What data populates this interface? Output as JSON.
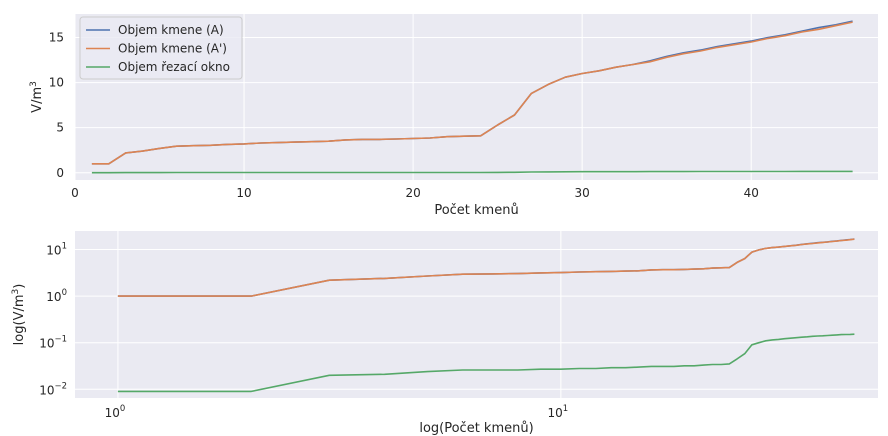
{
  "chart_data": [
    {
      "type": "line",
      "xlabel": "Počet kmenů",
      "ylabel": "V/m",
      "ylabel_sup": "3",
      "xlim": [
        0,
        47.5
      ],
      "ylim": [
        -0.8,
        17.6
      ],
      "xticks": [
        0,
        10,
        20,
        30,
        40
      ],
      "yticks": [
        0,
        5,
        10,
        15
      ],
      "grid": true,
      "legend_position": "top-left",
      "x": [
        1,
        2,
        3,
        4,
        5,
        6,
        7,
        8,
        9,
        10,
        11,
        12,
        13,
        14,
        15,
        16,
        17,
        18,
        19,
        20,
        21,
        22,
        23,
        24,
        25,
        26,
        27,
        28,
        29,
        30,
        31,
        32,
        33,
        34,
        35,
        36,
        37,
        38,
        39,
        40,
        41,
        42,
        43,
        44,
        45,
        46
      ],
      "series": [
        {
          "name": "Objem kmene (A)",
          "color": "#4c72b0",
          "values": [
            1.0,
            1.0,
            2.2,
            2.4,
            2.7,
            2.95,
            3.0,
            3.05,
            3.15,
            3.2,
            3.3,
            3.35,
            3.4,
            3.45,
            3.5,
            3.65,
            3.7,
            3.7,
            3.75,
            3.8,
            3.85,
            4.0,
            4.05,
            4.1,
            5.3,
            6.4,
            8.8,
            9.8,
            10.6,
            11.0,
            11.3,
            11.7,
            12.0,
            12.4,
            12.9,
            13.3,
            13.6,
            14.0,
            14.3,
            14.6,
            15.0,
            15.3,
            15.7,
            16.1,
            16.4,
            16.8
          ]
        },
        {
          "name": "Objem kmene (A')",
          "color": "#dd8452",
          "values": [
            1.0,
            1.0,
            2.2,
            2.4,
            2.7,
            2.95,
            3.0,
            3.05,
            3.15,
            3.2,
            3.3,
            3.35,
            3.4,
            3.45,
            3.5,
            3.65,
            3.7,
            3.7,
            3.75,
            3.8,
            3.85,
            4.0,
            4.05,
            4.1,
            5.3,
            6.4,
            8.8,
            9.8,
            10.6,
            11.0,
            11.3,
            11.7,
            12.0,
            12.3,
            12.8,
            13.2,
            13.5,
            13.9,
            14.2,
            14.5,
            14.9,
            15.2,
            15.6,
            15.9,
            16.3,
            16.7
          ]
        },
        {
          "name": "Objem řezací okno",
          "color": "#55a868",
          "values": [
            0.009,
            0.009,
            0.02,
            0.021,
            0.024,
            0.026,
            0.026,
            0.026,
            0.027,
            0.027,
            0.028,
            0.028,
            0.029,
            0.029,
            0.03,
            0.031,
            0.031,
            0.031,
            0.032,
            0.032,
            0.033,
            0.034,
            0.034,
            0.035,
            0.045,
            0.058,
            0.09,
            0.1,
            0.11,
            0.115,
            0.118,
            0.122,
            0.125,
            0.128,
            0.131,
            0.134,
            0.137,
            0.139,
            0.141,
            0.143,
            0.145,
            0.147,
            0.149,
            0.15,
            0.151,
            0.152
          ]
        }
      ]
    },
    {
      "type": "line",
      "xlabel": "log(Počet kmenů)",
      "ylabel": "log(V/m",
      "ylabel_sup": "3",
      "ylabel_close": ")",
      "xscale": "log",
      "yscale": "log",
      "xlim": [
        0.8,
        52
      ],
      "ylim": [
        0.0065,
        25
      ],
      "xticks": [
        {
          "base": "10",
          "exp": "0",
          "value": 1
        },
        {
          "base": "10",
          "exp": "1",
          "value": 10
        }
      ],
      "yticks": [
        {
          "base": "10",
          "exp": "1",
          "value": 10
        },
        {
          "base": "10",
          "exp": "0",
          "value": 1
        },
        {
          "base": "10",
          "exp": "−1",
          "value": 0.1
        },
        {
          "base": "10",
          "exp": "−2",
          "value": 0.01
        }
      ],
      "grid": true,
      "x": "same as first chart",
      "series": "same as first chart"
    }
  ]
}
